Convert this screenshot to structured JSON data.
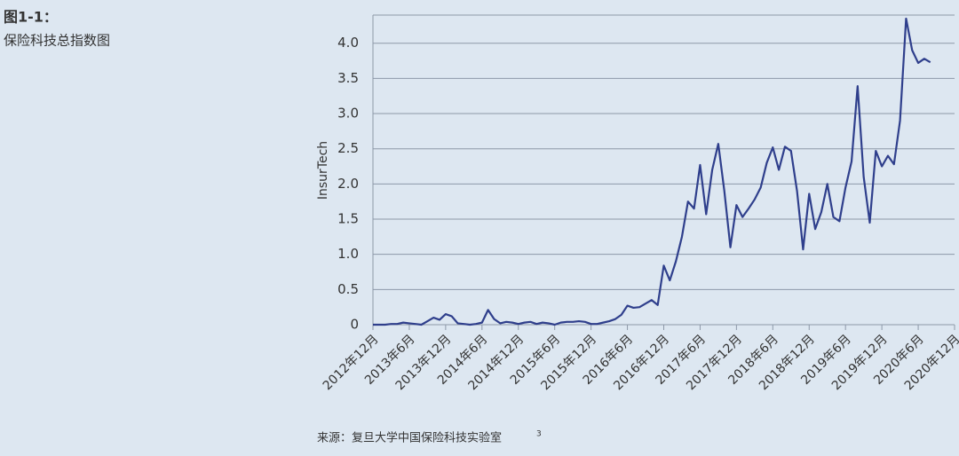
{
  "chart_data": {
    "type": "line",
    "title": "图1-1：",
    "subtitle": "保险科技总指数图",
    "ylabel": "InsurTech",
    "source": "来源：复旦大学中国保险科技实验室",
    "source_note": "3",
    "categories": [
      "2012年12月",
      null,
      null,
      null,
      null,
      null,
      "2013年6月",
      null,
      null,
      null,
      null,
      null,
      "2013年12月",
      null,
      null,
      null,
      null,
      null,
      "2014年6月",
      null,
      null,
      null,
      null,
      null,
      "2014年12月",
      null,
      null,
      null,
      null,
      null,
      "2015年6月",
      null,
      null,
      null,
      null,
      null,
      "2015年12月",
      null,
      null,
      null,
      null,
      null,
      "2016年6月",
      null,
      null,
      null,
      null,
      null,
      "2016年12月",
      null,
      null,
      null,
      null,
      null,
      "2017年6月",
      null,
      null,
      null,
      null,
      null,
      "2017年12月",
      null,
      null,
      null,
      null,
      null,
      "2018年6月",
      null,
      null,
      null,
      null,
      null,
      "2018年12月",
      null,
      null,
      null,
      null,
      null,
      "2019年6月",
      null,
      null,
      null,
      null,
      null,
      "2019年12月",
      null,
      null,
      null,
      null,
      null,
      "2020年6月",
      null,
      null,
      null,
      null,
      null,
      "2020年12月"
    ],
    "series": [
      {
        "name": "InsurTech",
        "color": "#2f3f8c",
        "values": [
          0,
          0,
          0,
          0.01,
          0.01,
          0.03,
          0.02,
          0.01,
          0,
          0.05,
          0.1,
          0.07,
          0.15,
          0.12,
          0.02,
          0.01,
          0,
          0.01,
          0.03,
          0.21,
          0.08,
          0.02,
          0.04,
          0.03,
          0.01,
          0.03,
          0.04,
          0.01,
          0.03,
          0.02,
          0,
          0.03,
          0.04,
          0.04,
          0.05,
          0.04,
          0.01,
          0.01,
          0.03,
          0.05,
          0.08,
          0.14,
          0.27,
          0.24,
          0.25,
          0.3,
          0.35,
          0.28,
          0.84,
          0.63,
          0.9,
          1.25,
          1.75,
          1.65,
          2.27,
          1.57,
          2.2,
          2.57,
          1.9,
          1.1,
          1.7,
          1.53,
          1.65,
          1.78,
          1.95,
          2.3,
          2.52,
          2.2,
          2.53,
          2.47,
          1.9,
          1.07,
          1.86,
          1.36,
          1.6,
          2.0,
          1.53,
          1.47,
          1.95,
          2.32,
          3.39,
          2.1,
          1.45,
          2.47,
          2.25,
          2.4,
          2.28,
          2.9,
          4.35,
          3.9,
          3.72,
          3.78,
          3.73,
          null,
          null,
          null,
          null
        ]
      }
    ],
    "ylim": [
      0,
      4.4
    ],
    "yticks": [
      0,
      0.5,
      {
        "value": 1,
        "label": "1.0"
      },
      1.5,
      {
        "value": 2,
        "label": "2.0"
      },
      2.5,
      {
        "value": 3,
        "label": "3.0"
      },
      3.5,
      {
        "value": 4,
        "label": "4.0"
      }
    ],
    "grid": true
  }
}
